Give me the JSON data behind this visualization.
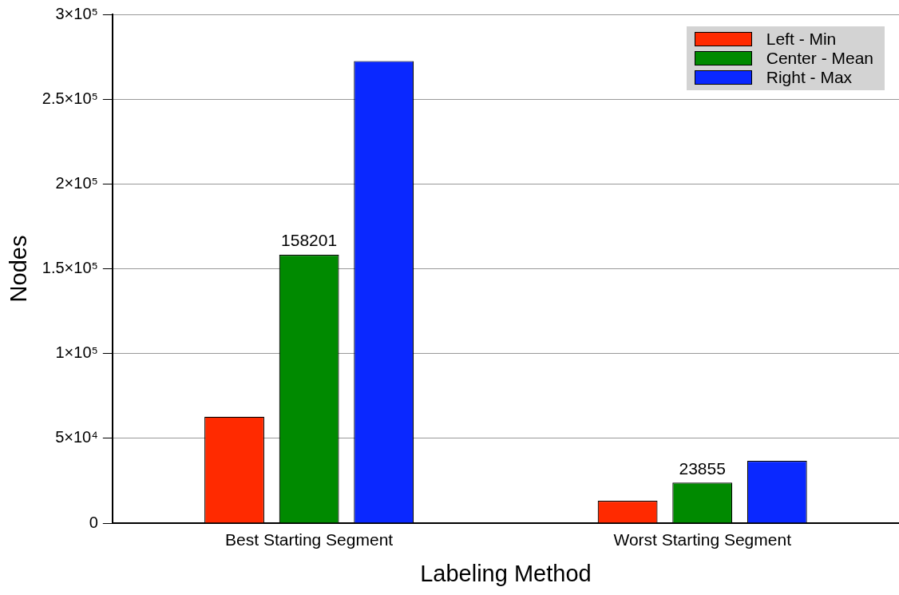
{
  "chart_data": {
    "type": "bar",
    "xlabel": "Labeling Method",
    "ylabel": "Nodes",
    "categories": [
      "Best Starting Segment",
      "Worst Starting Segment"
    ],
    "series": [
      {
        "name": "Left - Min",
        "color": "#ff2a00",
        "values": [
          62700,
          13200
        ]
      },
      {
        "name": "Center - Mean",
        "color": "#008a00",
        "values": [
          158201,
          23855
        ],
        "value_labels": [
          "158201",
          "23855"
        ]
      },
      {
        "name": "Right - Max",
        "color": "#0a28ff",
        "values": [
          272500,
          36700
        ]
      }
    ],
    "ylim": [
      0,
      300000
    ],
    "yticks": [
      {
        "value": 0,
        "label": "0"
      },
      {
        "value": 50000,
        "label": "5×10⁴"
      },
      {
        "value": 100000,
        "label": "1×10⁵"
      },
      {
        "value": 150000,
        "label": "1.5×10⁵"
      },
      {
        "value": 200000,
        "label": "2×10⁵"
      },
      {
        "value": 250000,
        "label": "2.5×10⁵"
      },
      {
        "value": 300000,
        "label": "3×10⁵"
      }
    ],
    "grid": "y",
    "legend": "top right"
  }
}
